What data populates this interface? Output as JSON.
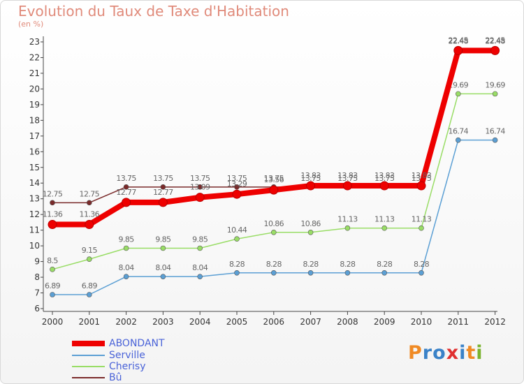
{
  "title": "Evolution du Taux de Taxe d'Habitation",
  "subtitle": "(en %)",
  "logo": {
    "text": "Proxiti",
    "letters": [
      "P",
      "r",
      "o",
      "x",
      "i",
      "t",
      "i"
    ],
    "colors": [
      "#f08a24",
      "#3a82c8",
      "#3a82c8",
      "#e03030",
      "#3a82c8",
      "#f08a24",
      "#7ab32e"
    ]
  },
  "colors": {
    "axis": "#444444",
    "tick_label": "#333333",
    "data_label": "#666666"
  },
  "chart_data": {
    "type": "line",
    "title": "Evolution du Taux de Taxe d'Habitation",
    "ylabel": "(en %)",
    "x": [
      "2000",
      "2001",
      "2002",
      "2003",
      "2004",
      "2005",
      "2006",
      "2007",
      "2008",
      "2009",
      "2010",
      "2011",
      "2012"
    ],
    "y_ticks": [
      "6",
      "7",
      "8",
      "9",
      "10",
      "11",
      "12",
      "13",
      "14",
      "15",
      "16",
      "17",
      "18",
      "19",
      "20",
      "21",
      "22",
      "23"
    ],
    "ylim": [
      6,
      23
    ],
    "grid": false,
    "legend_position": "bottom-left",
    "series": [
      {
        "name": "ABONDANT",
        "color": "#ee0000",
        "values": [
          11.36,
          11.36,
          12.77,
          12.77,
          13.09,
          13.29,
          13.56,
          13.83,
          13.83,
          13.83,
          13.83,
          22.45,
          22.45
        ],
        "labels": [
          "11.36",
          "11.36",
          "12.77",
          "12.77",
          "13.09",
          "13.29",
          "13.56",
          "13.83",
          "13.83",
          "13.83",
          "13.83",
          "22.45",
          "22.45"
        ]
      },
      {
        "name": "Serville",
        "color": "#5b9fd4",
        "values": [
          6.89,
          6.89,
          8.04,
          8.04,
          8.04,
          8.28,
          8.28,
          8.28,
          8.28,
          8.28,
          8.28,
          16.74,
          16.74
        ],
        "labels": [
          "6.89",
          "6.89",
          "8.04",
          "8.04",
          "8.04",
          "8.28",
          "8.28",
          "8.28",
          "8.28",
          "8.28",
          "8.28",
          "16.74",
          "16.74"
        ]
      },
      {
        "name": "Cherisy",
        "color": "#99dd66",
        "values": [
          8.5,
          9.15,
          9.85,
          9.85,
          9.85,
          10.44,
          10.86,
          10.86,
          11.13,
          11.13,
          11.13,
          19.69,
          19.69
        ],
        "labels": [
          "8.5",
          "9.15",
          "9.85",
          "9.85",
          "9.85",
          "10.44",
          "10.86",
          "10.86",
          "11.13",
          "11.13",
          "11.13",
          "19.69",
          "19.69"
        ]
      },
      {
        "name": "Bû",
        "color": "#7a2a2a",
        "values": [
          12.75,
          12.75,
          13.75,
          13.75,
          13.75,
          13.75,
          13.75,
          13.75,
          13.75,
          13.75,
          13.75,
          22.48,
          22.48
        ],
        "labels": [
          "12.75",
          "12.75",
          "13.75",
          "13.75",
          "13.75",
          "13.75",
          "13.75",
          "13.75",
          "13.75",
          "13.75",
          "13.75",
          "22.48",
          "22.48"
        ]
      }
    ]
  }
}
